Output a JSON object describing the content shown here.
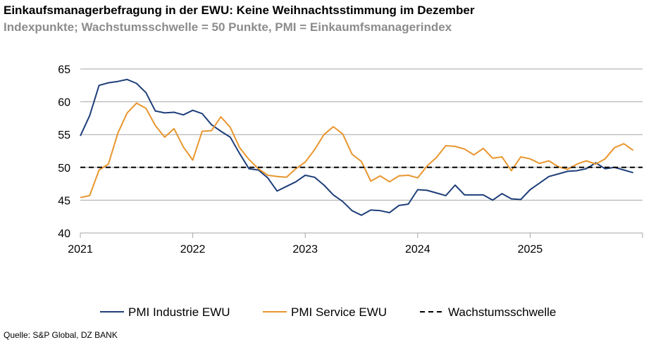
{
  "title": "Einkaufsmanagerbefragung in der EWU: Keine Weihnachtsstimmung im Dezember",
  "subtitle": "Indexpunkte; Wachstumsschwelle = 50 Punkte, PMI = Einkaumfsmanagerindex",
  "source": "Quelle: S&P Global, DZ BANK",
  "chart_data": {
    "type": "line",
    "x_start": "2021-01",
    "frequency": "monthly",
    "x_tick_labels": [
      "2021",
      "2022",
      "2023",
      "2024",
      "2025"
    ],
    "y_tick_labels": [
      "40",
      "45",
      "50",
      "55",
      "60",
      "65"
    ],
    "ylim": [
      40,
      65
    ],
    "grid": "horizontal",
    "legend_position": "bottom",
    "series": [
      {
        "name": "PMI Industrie EWU",
        "color": "#1f3f7a",
        "values": [
          54.8,
          57.9,
          62.5,
          62.9,
          63.1,
          63.4,
          62.8,
          61.4,
          58.6,
          58.3,
          58.4,
          58.0,
          58.7,
          58.2,
          56.5,
          55.5,
          54.6,
          52.1,
          49.8,
          49.6,
          48.4,
          46.4,
          47.1,
          47.8,
          48.8,
          48.5,
          47.3,
          45.8,
          44.8,
          43.4,
          42.7,
          43.5,
          43.4,
          43.1,
          44.2,
          44.4,
          46.6,
          46.5,
          46.1,
          45.7,
          47.3,
          45.8,
          45.8,
          45.8,
          45.0,
          46.0,
          45.2,
          45.1,
          46.6,
          47.6,
          48.6,
          49.0,
          49.4,
          49.5,
          49.8,
          50.7,
          49.8,
          50.0,
          49.6,
          49.2
        ]
      },
      {
        "name": "PMI Service EWU",
        "color": "#e8962e",
        "values": [
          45.4,
          45.7,
          49.6,
          50.5,
          55.2,
          58.3,
          59.8,
          59.0,
          56.4,
          54.6,
          55.9,
          53.1,
          51.1,
          55.5,
          55.6,
          57.7,
          56.1,
          53.0,
          51.2,
          49.8,
          48.8,
          48.6,
          48.5,
          49.8,
          50.8,
          52.7,
          55.0,
          56.2,
          55.1,
          52.0,
          50.9,
          47.9,
          48.7,
          47.8,
          48.7,
          48.8,
          48.4,
          50.2,
          51.5,
          53.3,
          53.2,
          52.8,
          51.9,
          52.9,
          51.4,
          51.6,
          49.5,
          51.6,
          51.3,
          50.6,
          51.0,
          50.1,
          49.7,
          50.5,
          51.0,
          50.5,
          51.3,
          53.0,
          53.6,
          52.6
        ]
      },
      {
        "name": "Wachstumsschwelle",
        "color": "#000000",
        "style": "dashed",
        "value": 50
      }
    ]
  }
}
